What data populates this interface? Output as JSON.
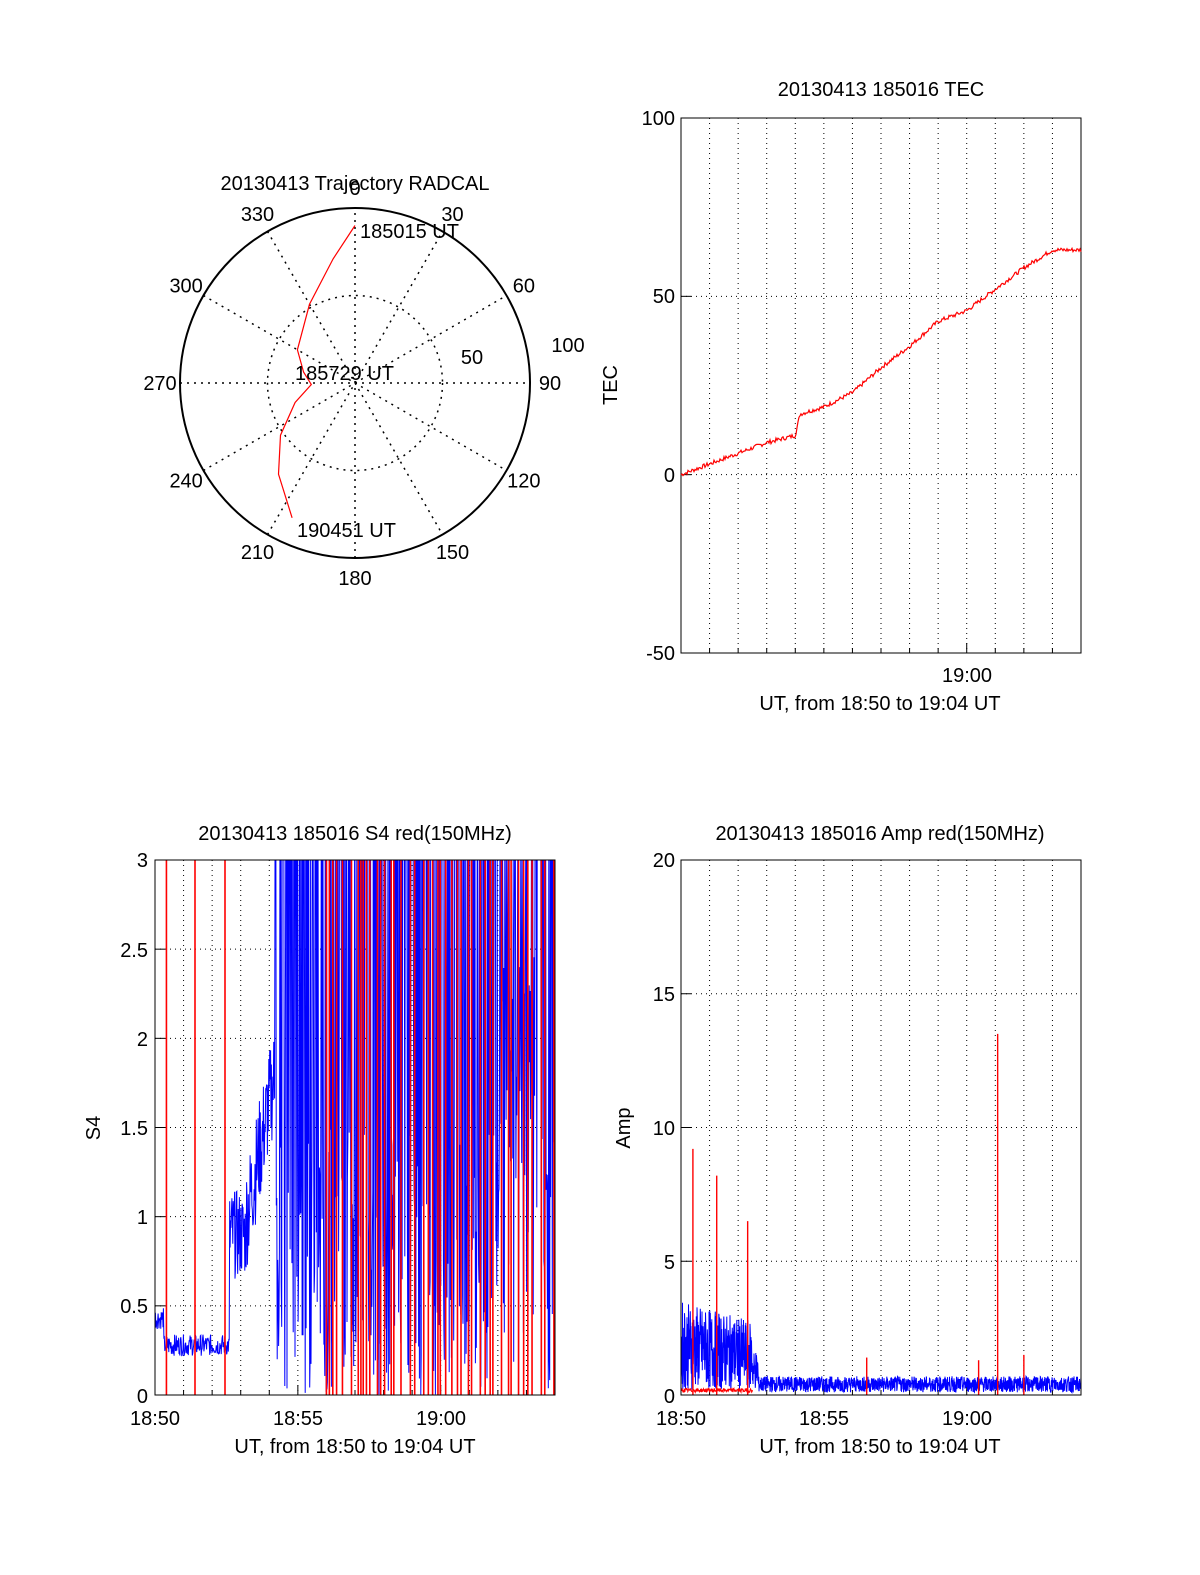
{
  "colors": {
    "red": "#ff0000",
    "blue": "#0000ff",
    "axis": "#000000",
    "grid": "#000000"
  },
  "chart_data": [
    {
      "id": "trajectory",
      "type": "polar",
      "title": "20130413 Trajectory RADCAL",
      "azimuth_labels": [
        "0",
        "30",
        "60",
        "90",
        "120",
        "150",
        "180",
        "210",
        "240",
        "270",
        "300",
        "330"
      ],
      "radial_labels": [
        "50",
        "100"
      ],
      "zenith_range": [
        0,
        100
      ],
      "grid": true,
      "annotations": [
        {
          "text": "185015 UT",
          "az": 0,
          "zen": 90
        },
        {
          "text": "185729 UT",
          "az": 270,
          "zen": 15
        },
        {
          "text": "190451 UT",
          "az": 200,
          "zen": 80
        }
      ],
      "series": [
        {
          "color": "red",
          "points": [
            [
              0,
              90
            ],
            [
              350,
              72
            ],
            [
              330,
              52
            ],
            [
              300,
              38
            ],
            [
              282,
              30
            ],
            [
              268,
              25
            ],
            [
              252,
              36
            ],
            [
              235,
              52
            ],
            [
              220,
              68
            ],
            [
              205,
              85
            ]
          ]
        }
      ]
    },
    {
      "id": "tec",
      "type": "line",
      "title": "20130413 185016 TEC",
      "ylabel": "TEC",
      "xlabel": "UT, from 18:50 to 19:04 UT",
      "xlim": [
        "18:50",
        "19:04"
      ],
      "ylim": [
        -50,
        100
      ],
      "yticks": [
        "-50",
        "0",
        "50",
        "100"
      ],
      "xticks": [
        "19:00"
      ],
      "grid": true,
      "series": [
        {
          "color": "red",
          "x": [
            "18:50",
            "18:51",
            "18:52",
            "18:53",
            "18:54",
            "18:54:10",
            "18:55",
            "18:56",
            "18:57",
            "18:58",
            "18:59",
            "19:00",
            "19:01",
            "19:02",
            "19:03",
            "19:04"
          ],
          "y": [
            0,
            3,
            6,
            9,
            11,
            17,
            19,
            23,
            30,
            36,
            43,
            46,
            52,
            58,
            63,
            63
          ]
        }
      ]
    },
    {
      "id": "s4",
      "type": "line",
      "title": "20130413 185016 S4 red(150MHz)",
      "ylabel": "S4",
      "xlabel": "UT, from 18:50 to 19:04 UT",
      "xlim": [
        "18:50",
        "19:04"
      ],
      "ylim": [
        0,
        3
      ],
      "yticks": [
        "0",
        "0.5",
        "1",
        "1.5",
        "2",
        "2.5",
        "3"
      ],
      "xticks": [
        "18:50",
        "18:55",
        "19:00"
      ],
      "grid": true,
      "series": [
        {
          "color": "blue",
          "note": "dense noisy trace",
          "x": [
            "18:50",
            "18:51",
            "18:52",
            "18:52:30",
            "18:53",
            "18:54",
            "18:55",
            "18:56",
            "18:58",
            "19:00",
            "19:02",
            "19:04"
          ],
          "y": [
            0.3,
            0.28,
            0.32,
            0.34,
            0.9,
            1.3,
            3,
            0.5,
            3,
            3,
            1.4,
            2.2
          ]
        },
        {
          "color": "red",
          "note": "vertical spikes",
          "spikes": [
            "18:50:05",
            "18:51:05",
            "18:52:05",
            "18:56:10",
            "18:57:30",
            "18:58:30",
            "19:00:30",
            "19:02:30"
          ]
        }
      ]
    },
    {
      "id": "amp",
      "type": "line",
      "title": "20130413 185016 Amp red(150MHz)",
      "ylabel": "Amp",
      "xlabel": "UT, from 18:50 to 19:04 UT",
      "xlim": [
        "18:50",
        "19:04"
      ],
      "ylim": [
        0,
        20
      ],
      "yticks": [
        "0",
        "5",
        "10",
        "15",
        "20"
      ],
      "xticks": [
        "18:50",
        "18:55",
        "19:00"
      ],
      "grid": true,
      "series": [
        {
          "color": "blue",
          "note": "dense noisy band",
          "x": [
            "18:50",
            "18:51",
            "18:52",
            "18:52:30",
            "18:53",
            "18:56",
            "19:00",
            "19:04"
          ],
          "y": [
            2.5,
            2.6,
            2.2,
            1.8,
            0.5,
            0.4,
            0.4,
            0.4
          ]
        },
        {
          "color": "red",
          "note": "spikes",
          "spikes": [
            [
              "18:50:25",
              9.2
            ],
            [
              "18:51:15",
              8.2
            ],
            [
              "18:52:20",
              6.5
            ],
            [
              "18:56:30",
              1.4
            ],
            [
              "19:00:25",
              1.3
            ],
            [
              "19:01:05",
              13.5
            ],
            [
              "19:02:00",
              1.5
            ]
          ]
        }
      ]
    }
  ]
}
